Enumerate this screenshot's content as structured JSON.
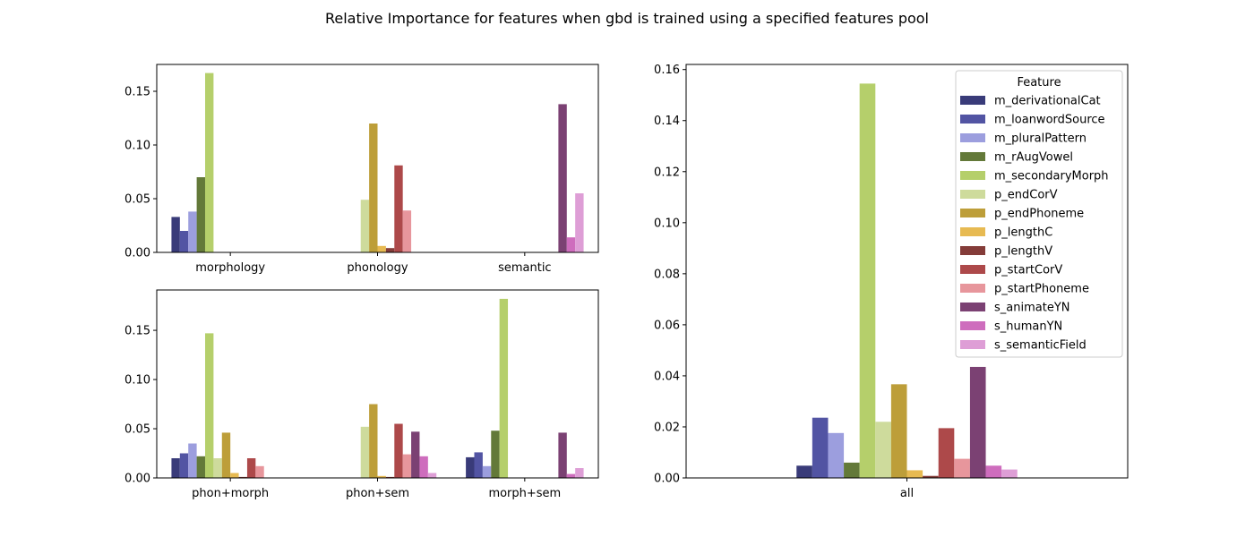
{
  "title": "Relative Importance for features when gbd is trained using a specified features pool",
  "legend": {
    "title": "Feature",
    "items": [
      {
        "name": "m_derivationalCat",
        "color": "#393b79"
      },
      {
        "name": "m_loanwordSource",
        "color": "#5254a3"
      },
      {
        "name": "m_pluralPattern",
        "color": "#9c9ede"
      },
      {
        "name": "m_rAugVowel",
        "color": "#637939"
      },
      {
        "name": "m_secondaryMorph",
        "color": "#b5cf6b"
      },
      {
        "name": "p_endCorV",
        "color": "#cedb9c"
      },
      {
        "name": "p_endPhoneme",
        "color": "#bd9e39"
      },
      {
        "name": "p_lengthC",
        "color": "#e7ba52"
      },
      {
        "name": "p_lengthV",
        "color": "#843c39"
      },
      {
        "name": "p_startCorV",
        "color": "#ad494a"
      },
      {
        "name": "p_startPhoneme",
        "color": "#e7969c"
      },
      {
        "name": "s_animateYN",
        "color": "#7b4173"
      },
      {
        "name": "s_humanYN",
        "color": "#ce6dbd"
      },
      {
        "name": "s_semanticField",
        "color": "#de9ed6"
      }
    ]
  },
  "chart_data": [
    {
      "type": "bar",
      "categories": [
        "morphology",
        "phonology",
        "semantic"
      ],
      "ylim": [
        0,
        0.175
      ],
      "yticks": [
        "0.00",
        "0.05",
        "0.10",
        "0.15"
      ],
      "series": [
        {
          "name": "m_derivationalCat",
          "values": [
            0.033,
            0,
            0
          ]
        },
        {
          "name": "m_loanwordSource",
          "values": [
            0.02,
            0,
            0
          ]
        },
        {
          "name": "m_pluralPattern",
          "values": [
            0.038,
            0,
            0
          ]
        },
        {
          "name": "m_rAugVowel",
          "values": [
            0.07,
            0,
            0
          ]
        },
        {
          "name": "m_secondaryMorph",
          "values": [
            0.167,
            0,
            0
          ]
        },
        {
          "name": "p_endCorV",
          "values": [
            0,
            0.049,
            0
          ]
        },
        {
          "name": "p_endPhoneme",
          "values": [
            0,
            0.12,
            0
          ]
        },
        {
          "name": "p_lengthC",
          "values": [
            0,
            0.006,
            0
          ]
        },
        {
          "name": "p_lengthV",
          "values": [
            0,
            0.004,
            0
          ]
        },
        {
          "name": "p_startCorV",
          "values": [
            0,
            0.081,
            0
          ]
        },
        {
          "name": "p_startPhoneme",
          "values": [
            0,
            0.039,
            0
          ]
        },
        {
          "name": "s_animateYN",
          "values": [
            0,
            0,
            0.138
          ]
        },
        {
          "name": "s_humanYN",
          "values": [
            0,
            0,
            0.014
          ]
        },
        {
          "name": "s_semanticField",
          "values": [
            0,
            0,
            0.055
          ]
        }
      ]
    },
    {
      "type": "bar",
      "categories": [
        "phon+morph",
        "phon+sem",
        "morph+sem"
      ],
      "ylim": [
        0,
        0.191
      ],
      "yticks": [
        "0.00",
        "0.05",
        "0.10",
        "0.15"
      ],
      "series": [
        {
          "name": "m_derivationalCat",
          "values": [
            0.02,
            0,
            0.021
          ]
        },
        {
          "name": "m_loanwordSource",
          "values": [
            0.025,
            0,
            0.026
          ]
        },
        {
          "name": "m_pluralPattern",
          "values": [
            0.035,
            0,
            0.012
          ]
        },
        {
          "name": "m_rAugVowel",
          "values": [
            0.022,
            0,
            0.048
          ]
        },
        {
          "name": "m_secondaryMorph",
          "values": [
            0.147,
            0,
            0.182
          ]
        },
        {
          "name": "p_endCorV",
          "values": [
            0.02,
            0.052,
            0
          ]
        },
        {
          "name": "p_endPhoneme",
          "values": [
            0.046,
            0.075,
            0
          ]
        },
        {
          "name": "p_lengthC",
          "values": [
            0.005,
            0.002,
            0
          ]
        },
        {
          "name": "p_lengthV",
          "values": [
            0.001,
            0.001,
            0
          ]
        },
        {
          "name": "p_startCorV",
          "values": [
            0.02,
            0.055,
            0
          ]
        },
        {
          "name": "p_startPhoneme",
          "values": [
            0.012,
            0.024,
            0
          ]
        },
        {
          "name": "s_animateYN",
          "values": [
            0,
            0.047,
            0.046
          ]
        },
        {
          "name": "s_humanYN",
          "values": [
            0,
            0.022,
            0.004
          ]
        },
        {
          "name": "s_semanticField",
          "values": [
            0,
            0.005,
            0.01
          ]
        }
      ]
    },
    {
      "type": "bar",
      "categories": [
        "all"
      ],
      "ylim": [
        0,
        0.162
      ],
      "yticks": [
        "0.00",
        "0.02",
        "0.04",
        "0.06",
        "0.08",
        "0.10",
        "0.12",
        "0.14",
        "0.16"
      ],
      "series": [
        {
          "name": "m_derivationalCat",
          "values": [
            0.0048
          ]
        },
        {
          "name": "m_loanwordSource",
          "values": [
            0.0236
          ]
        },
        {
          "name": "m_pluralPattern",
          "values": [
            0.0176
          ]
        },
        {
          "name": "m_rAugVowel",
          "values": [
            0.006
          ]
        },
        {
          "name": "m_secondaryMorph",
          "values": [
            0.1545
          ]
        },
        {
          "name": "p_endCorV",
          "values": [
            0.022
          ]
        },
        {
          "name": "p_endPhoneme",
          "values": [
            0.0367
          ]
        },
        {
          "name": "p_lengthC",
          "values": [
            0.003
          ]
        },
        {
          "name": "p_lengthV",
          "values": [
            0.0008
          ]
        },
        {
          "name": "p_startCorV",
          "values": [
            0.0195
          ]
        },
        {
          "name": "p_startPhoneme",
          "values": [
            0.0075
          ]
        },
        {
          "name": "s_animateYN",
          "values": [
            0.0435
          ]
        },
        {
          "name": "s_humanYN",
          "values": [
            0.0048
          ]
        },
        {
          "name": "s_semanticField",
          "values": [
            0.0033
          ]
        }
      ]
    }
  ]
}
